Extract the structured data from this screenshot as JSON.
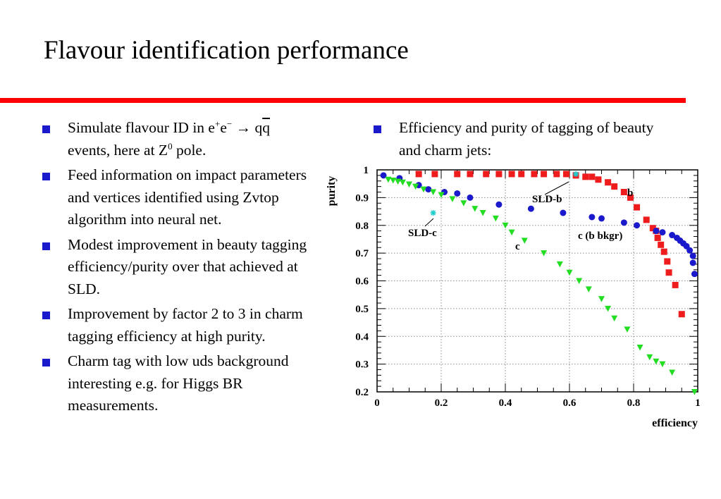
{
  "slide": {
    "title": "Flavour identification performance",
    "accent_color": "#ff0000",
    "bullet_color": "#1a1acc"
  },
  "left_bullets": {
    "b1_l1_pre": "Simulate flavour ID in  e",
    "b1_sup1": "+",
    "b1_e2": "e",
    "b1_sup2": "−",
    "b1_arrow": "→",
    "b1_q": "q",
    "b1_qbar": "q",
    "b1_l2_pre": "events, here at Z",
    "b1_sup3": "0",
    "b1_l2_post": " pole.",
    "b2": "Feed information on impact parameters and vertices identified using Zvtop algorithm into neural net.",
    "b3": "Modest improvement in beauty tagging efficiency/purity over that achieved at SLD.",
    "b4": "Improvement by factor 2 to 3 in charm tagging efficiency at high purity.",
    "b5": "Charm tag with low uds background interesting e.g. for Higgs BR measurements."
  },
  "right_bullets": {
    "b1": "Efficiency and purity of tagging of beauty and charm jets:"
  },
  "chart_data": {
    "type": "scatter",
    "xlabel": "efficiency",
    "ylabel": "purity",
    "xlim": [
      0,
      1
    ],
    "ylim": [
      0.2,
      1.0
    ],
    "xticks": [
      "0",
      "0.2",
      "0.4",
      "0.6",
      "0.8",
      "1"
    ],
    "yticks": [
      "0.2",
      "0.3",
      "0.4",
      "0.5",
      "0.6",
      "0.7",
      "0.8",
      "0.9",
      "1"
    ],
    "grid": true,
    "series": [
      {
        "name": "b",
        "marker": "square",
        "color": "#ee1c1c",
        "points": [
          [
            0.13,
            0.985
          ],
          [
            0.18,
            0.985
          ],
          [
            0.25,
            0.985
          ],
          [
            0.29,
            0.985
          ],
          [
            0.34,
            0.985
          ],
          [
            0.38,
            0.985
          ],
          [
            0.42,
            0.985
          ],
          [
            0.45,
            0.985
          ],
          [
            0.49,
            0.985
          ],
          [
            0.52,
            0.985
          ],
          [
            0.56,
            0.985
          ],
          [
            0.59,
            0.985
          ],
          [
            0.62,
            0.98
          ],
          [
            0.65,
            0.975
          ],
          [
            0.67,
            0.975
          ],
          [
            0.69,
            0.965
          ],
          [
            0.72,
            0.955
          ],
          [
            0.74,
            0.94
          ],
          [
            0.77,
            0.92
          ],
          [
            0.79,
            0.9
          ],
          [
            0.81,
            0.865
          ],
          [
            0.84,
            0.82
          ],
          [
            0.86,
            0.79
          ],
          [
            0.87,
            0.78
          ],
          [
            0.875,
            0.755
          ],
          [
            0.885,
            0.73
          ],
          [
            0.895,
            0.705
          ],
          [
            0.905,
            0.67
          ],
          [
            0.91,
            0.63
          ],
          [
            0.93,
            0.585
          ],
          [
            0.95,
            0.48
          ]
        ]
      },
      {
        "name": "c (b bkgr)",
        "marker": "circle",
        "color": "#1a1acc",
        "points": [
          [
            0.02,
            0.98
          ],
          [
            0.07,
            0.97
          ],
          [
            0.13,
            0.945
          ],
          [
            0.16,
            0.93
          ],
          [
            0.21,
            0.92
          ],
          [
            0.25,
            0.915
          ],
          [
            0.29,
            0.9
          ],
          [
            0.38,
            0.875
          ],
          [
            0.48,
            0.86
          ],
          [
            0.58,
            0.845
          ],
          [
            0.67,
            0.83
          ],
          [
            0.7,
            0.825
          ],
          [
            0.77,
            0.81
          ],
          [
            0.81,
            0.8
          ],
          [
            0.87,
            0.78
          ],
          [
            0.89,
            0.775
          ],
          [
            0.92,
            0.765
          ],
          [
            0.935,
            0.755
          ],
          [
            0.945,
            0.745
          ],
          [
            0.955,
            0.735
          ],
          [
            0.965,
            0.725
          ],
          [
            0.975,
            0.71
          ],
          [
            0.985,
            0.69
          ],
          [
            0.985,
            0.665
          ],
          [
            0.99,
            0.625
          ]
        ]
      },
      {
        "name": "c",
        "marker": "triangle-down",
        "color": "#22dd22",
        "points": [
          [
            0.035,
            0.965
          ],
          [
            0.05,
            0.962
          ],
          [
            0.065,
            0.958
          ],
          [
            0.08,
            0.955
          ],
          [
            0.1,
            0.948
          ],
          [
            0.12,
            0.94
          ],
          [
            0.145,
            0.93
          ],
          [
            0.175,
            0.92
          ],
          [
            0.2,
            0.91
          ],
          [
            0.235,
            0.895
          ],
          [
            0.27,
            0.88
          ],
          [
            0.305,
            0.86
          ],
          [
            0.33,
            0.845
          ],
          [
            0.37,
            0.825
          ],
          [
            0.4,
            0.8
          ],
          [
            0.42,
            0.775
          ],
          [
            0.46,
            0.745
          ],
          [
            0.52,
            0.7
          ],
          [
            0.57,
            0.66
          ],
          [
            0.6,
            0.63
          ],
          [
            0.63,
            0.6
          ],
          [
            0.66,
            0.57
          ],
          [
            0.7,
            0.535
          ],
          [
            0.72,
            0.5
          ],
          [
            0.74,
            0.465
          ],
          [
            0.78,
            0.425
          ],
          [
            0.82,
            0.36
          ],
          [
            0.85,
            0.325
          ],
          [
            0.87,
            0.31
          ],
          [
            0.89,
            0.3
          ],
          [
            0.92,
            0.27
          ],
          [
            0.99,
            0.2
          ]
        ]
      },
      {
        "name": "SLD-b",
        "marker": "star",
        "color": "#22cccc",
        "points": [
          [
            0.62,
            0.985
          ]
        ]
      },
      {
        "name": "SLD-c",
        "marker": "star",
        "color": "#22cccc",
        "points": [
          [
            0.175,
            0.845
          ]
        ]
      }
    ],
    "annotations": [
      "SLD-b",
      "SLD-c",
      "b",
      "c",
      "c (b bkgr)"
    ]
  }
}
